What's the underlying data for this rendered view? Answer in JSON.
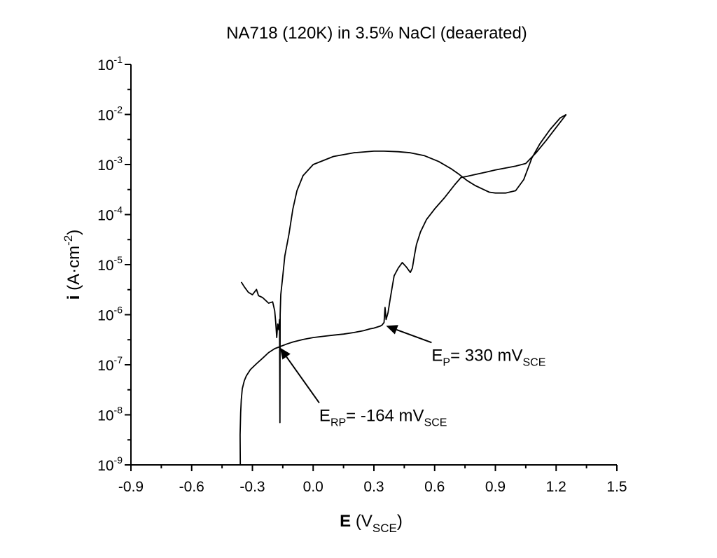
{
  "chart_data": {
    "type": "line",
    "title": "NA718 (120K) in 3.5% NaCl (deaerated)",
    "xlabel": {
      "bold": "E",
      "text": " (V",
      "sub": "SCE",
      "tail": ")"
    },
    "ylabel": {
      "bold": "i",
      "text": " (A·cm",
      "sup": "-2",
      "tail": ")"
    },
    "xlim": [
      -0.9,
      1.5
    ],
    "ylim": [
      1e-09,
      0.1
    ],
    "yscale": "log",
    "grid": false,
    "xticks": [
      "-0.9",
      "-0.6",
      "-0.3",
      "0.0",
      "0.3",
      "0.6",
      "0.9",
      "1.2",
      "1.5"
    ],
    "yticks": [
      {
        "base": "10",
        "exp": "-9"
      },
      {
        "base": "10",
        "exp": "-8"
      },
      {
        "base": "10",
        "exp": "-7"
      },
      {
        "base": "10",
        "exp": "-6"
      },
      {
        "base": "10",
        "exp": "-5"
      },
      {
        "base": "10",
        "exp": "-4"
      },
      {
        "base": "10",
        "exp": "-3"
      },
      {
        "base": "10",
        "exp": "-2"
      },
      {
        "base": "10",
        "exp": "-1"
      }
    ],
    "annotations": [
      {
        "main": "E",
        "sub": "P",
        "text": "= 330 mV",
        "sub2": "SCE",
        "arrow_to": [
          0.36,
          6e-07
        ],
        "label_at": [
          0.585,
          1.2e-07
        ]
      },
      {
        "main": "E",
        "sub": "RP",
        "text": "= -164 mV",
        "sub2": "SCE",
        "arrow_to": [
          -0.164,
          2.2e-07
        ],
        "label_at": [
          0.03,
          7.5e-09
        ]
      }
    ],
    "series": [
      {
        "values": [
          [
            -0.36,
            1e-09
          ],
          [
            -0.361,
            4e-09
          ],
          [
            -0.358,
            1.1e-08
          ],
          [
            -0.355,
            2e-08
          ],
          [
            -0.35,
            3.3e-08
          ],
          [
            -0.34,
            4.8e-08
          ],
          [
            -0.33,
            6e-08
          ],
          [
            -0.31,
            8e-08
          ],
          [
            -0.28,
            1.05e-07
          ],
          [
            -0.25,
            1.35e-07
          ],
          [
            -0.22,
            1.75e-07
          ],
          [
            -0.19,
            2.1e-07
          ],
          [
            -0.164,
            2.3e-07
          ],
          [
            -0.13,
            2.6e-07
          ],
          [
            -0.1,
            2.85e-07
          ],
          [
            -0.05,
            3.2e-07
          ],
          [
            0.0,
            3.5e-07
          ],
          [
            0.05,
            3.7e-07
          ],
          [
            0.1,
            3.9e-07
          ],
          [
            0.15,
            4.1e-07
          ],
          [
            0.2,
            4.4e-07
          ],
          [
            0.25,
            4.8e-07
          ],
          [
            0.28,
            5.2e-07
          ],
          [
            0.3,
            5.4e-07
          ],
          [
            0.33,
            5.9e-07
          ],
          [
            0.34,
            6.2e-07
          ],
          [
            0.35,
            7e-07
          ],
          [
            0.355,
            1.4e-06
          ],
          [
            0.36,
            8e-07
          ],
          [
            0.37,
            1.1e-06
          ],
          [
            0.38,
            2e-06
          ],
          [
            0.39,
            3.5e-06
          ],
          [
            0.4,
            6e-06
          ],
          [
            0.42,
            8.5e-06
          ],
          [
            0.44,
            1.1e-05
          ],
          [
            0.46,
            9e-06
          ],
          [
            0.48,
            7e-06
          ],
          [
            0.49,
            8.5e-06
          ],
          [
            0.5,
            1.5e-05
          ],
          [
            0.51,
            2.5e-05
          ],
          [
            0.53,
            4.5e-05
          ],
          [
            0.56,
            8e-05
          ],
          [
            0.6,
            0.00013
          ],
          [
            0.65,
            0.00022
          ],
          [
            0.7,
            0.0004
          ],
          [
            0.73,
            0.00055
          ],
          [
            0.76,
            0.00058
          ],
          [
            0.8,
            0.00063
          ],
          [
            0.85,
            0.0007
          ],
          [
            0.9,
            0.00078
          ],
          [
            0.95,
            0.00085
          ],
          [
            1.0,
            0.00093
          ],
          [
            1.05,
            0.00105
          ],
          [
            1.1,
            0.0017
          ],
          [
            1.15,
            0.003
          ],
          [
            1.2,
            0.0055
          ],
          [
            1.25,
            0.01
          ]
        ]
      },
      {
        "values": [
          [
            1.25,
            0.01
          ],
          [
            1.22,
            0.0085
          ],
          [
            1.17,
            0.005
          ],
          [
            1.12,
            0.0026
          ],
          [
            1.08,
            0.00135
          ],
          [
            1.04,
            0.0005
          ],
          [
            1.0,
            0.0003
          ],
          [
            0.95,
            0.00027
          ],
          [
            0.9,
            0.00027
          ],
          [
            0.87,
            0.00028
          ],
          [
            0.84,
            0.00032
          ],
          [
            0.8,
            0.00038
          ],
          [
            0.76,
            0.00048
          ],
          [
            0.72,
            0.00064
          ],
          [
            0.68,
            0.00083
          ],
          [
            0.62,
            0.00115
          ],
          [
            0.55,
            0.0015
          ],
          [
            0.48,
            0.00172
          ],
          [
            0.42,
            0.0018
          ],
          [
            0.35,
            0.00185
          ],
          [
            0.3,
            0.00185
          ],
          [
            0.2,
            0.00172
          ],
          [
            0.1,
            0.00145
          ],
          [
            0.0,
            0.001
          ],
          [
            -0.05,
            0.0006
          ],
          [
            -0.08,
            0.0003
          ],
          [
            -0.1,
            0.00013
          ],
          [
            -0.12,
            4e-05
          ],
          [
            -0.14,
            1.5e-05
          ],
          [
            -0.15,
            6e-06
          ],
          [
            -0.16,
            2.5e-06
          ],
          [
            -0.163,
            1e-06
          ],
          [
            -0.164,
            7e-09
          ],
          [
            -0.166,
            8e-07
          ],
          [
            -0.17,
            5e-07
          ],
          [
            -0.175,
            6.5e-07
          ],
          [
            -0.18,
            3.5e-07
          ],
          [
            -0.185,
            7e-07
          ],
          [
            -0.19,
            1.2e-06
          ],
          [
            -0.2,
            1.8e-06
          ],
          [
            -0.22,
            1.7e-06
          ],
          [
            -0.25,
            2.2e-06
          ],
          [
            -0.27,
            2.4e-06
          ],
          [
            -0.28,
            3.2e-06
          ],
          [
            -0.3,
            2.5e-06
          ],
          [
            -0.32,
            2.8e-06
          ],
          [
            -0.34,
            3.6e-06
          ],
          [
            -0.355,
            4.5e-06
          ]
        ]
      }
    ]
  }
}
